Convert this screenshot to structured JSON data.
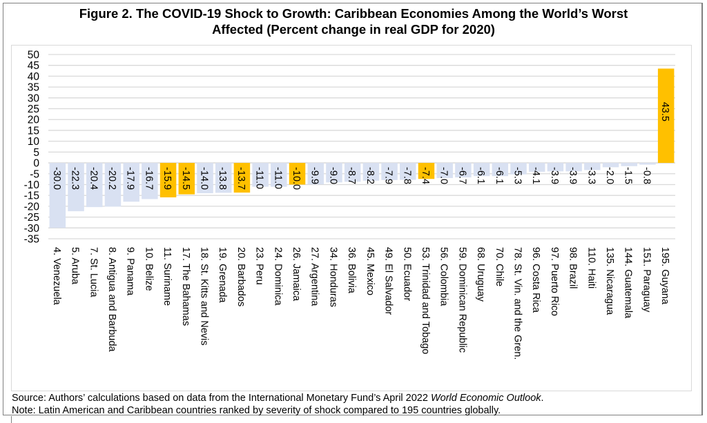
{
  "figure": {
    "title_line1": "Figure 2. The COVID-19 Shock to Growth:  Caribbean Economies Among the World’s Worst",
    "title_line2": "Affected (Percent change in real GDP for 2020)",
    "source_prefix": "Source: Authors’ calculations based on data from the International Monetary Fund’s April 2022 ",
    "source_italic": "World Economic Outlook",
    "source_suffix": ".",
    "note": "Note: Latin American and Caribbean countries ranked by severity of shock compared to 195 countries globally."
  },
  "colors": {
    "highlight": "#FFC000",
    "default": "#D9E1F2",
    "grid": "#D9D9D9"
  },
  "chart_data": {
    "type": "bar",
    "title": "Figure 2. The COVID-19 Shock to Growth: Caribbean Economies Among the World’s Worst Affected (Percent change in real GDP for 2020)",
    "xlabel": "",
    "ylabel": "",
    "ylim": [
      -35,
      50
    ],
    "yticks": [
      50,
      45,
      40,
      35,
      30,
      25,
      20,
      15,
      10,
      5,
      0,
      -5,
      -10,
      -15,
      -20,
      -25,
      -30,
      -35
    ],
    "grid": true,
    "legend": "none",
    "categories": [
      "4. Venezuela",
      "5. Aruba",
      "7. St. Lucia",
      "8. Antigua and Barbuda",
      "9. Panama",
      "10. Belize",
      "11. Suriname",
      "17. The Bahamas",
      "18. St. Kitts and Nevis",
      "19. Grenada",
      "20. Barbados",
      "23. Peru",
      "24. Dominica",
      "26. Jamaica",
      "27. Argentina",
      "34. Honduras",
      "36. Bolivia",
      "45. Mexico",
      "49. El Salvador",
      "50. Ecuador",
      "53. Trinidad and Tobago",
      "56. Colombia",
      "59. Dominican Republic",
      "68. Uruguay",
      "70. Chile",
      "78. St. Vin. and the Gren.",
      "96. Costa Rica",
      "97. Puerto Rico",
      "98. Brazil",
      "110. Haiti",
      "135. Nicaragua",
      "144. Guatemala",
      "151. Paraguay",
      "195. Guyana"
    ],
    "values": [
      -30.0,
      -22.3,
      -20.4,
      -20.2,
      -17.9,
      -16.7,
      -15.9,
      -14.5,
      -14.0,
      -13.8,
      -13.7,
      -11.0,
      -11.0,
      -10.0,
      -9.9,
      -9.0,
      -8.7,
      -8.2,
      -7.9,
      -7.8,
      -7.4,
      -7.0,
      -6.7,
      -6.1,
      -6.1,
      -5.3,
      -4.1,
      -3.9,
      -3.9,
      -3.3,
      -2.0,
      -1.5,
      -0.8,
      43.5
    ],
    "data_labels": [
      "-30.0",
      "-22.3",
      "-20.4",
      "-20.2",
      "-17.9",
      "-16.7",
      "-15.9",
      "-14.5",
      "-14.0",
      "-13.8",
      "-13.7",
      "-11.0",
      "-11.0",
      "-10.0",
      "-9.9",
      "-9.0",
      "-8.7",
      "-8.2",
      "-7.9",
      "-7.8",
      "-7.4",
      "-7.0",
      "-6.7",
      "-6.1",
      "-6.1",
      "-5.3",
      "-4.1",
      "-3.9",
      "-3.9",
      "-3.3",
      "-2.0",
      "-1.5",
      "-0.8",
      "43.5"
    ],
    "highlighted": [
      false,
      false,
      false,
      false,
      false,
      false,
      true,
      true,
      false,
      false,
      true,
      false,
      false,
      true,
      false,
      false,
      false,
      false,
      false,
      false,
      true,
      false,
      false,
      false,
      false,
      false,
      false,
      false,
      false,
      false,
      false,
      false,
      false,
      true
    ]
  }
}
